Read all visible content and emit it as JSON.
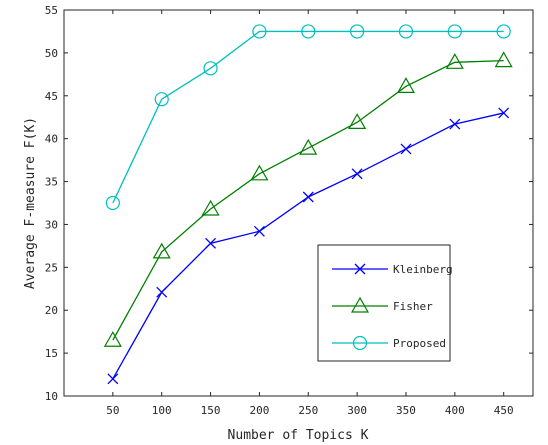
{
  "chart_data": {
    "type": "line",
    "title": "",
    "xlabel": "Number of Topics K",
    "ylabel": "Average F-measure F(K)",
    "x": [
      50,
      100,
      150,
      200,
      250,
      300,
      350,
      400,
      450
    ],
    "xlim": [
      0,
      480
    ],
    "ylim": [
      10,
      55
    ],
    "xticks": [
      50,
      100,
      150,
      200,
      250,
      300,
      350,
      400,
      450
    ],
    "yticks": [
      10,
      15,
      20,
      25,
      30,
      35,
      40,
      45,
      50,
      55
    ],
    "grid": false,
    "legend_position": "lower-right",
    "series": [
      {
        "name": "Kleinberg",
        "color": "#0000ff",
        "marker": "x",
        "values": [
          12.0,
          22.1,
          27.8,
          29.2,
          33.2,
          35.9,
          38.8,
          41.7,
          43.0
        ]
      },
      {
        "name": "Fisher",
        "color": "#008000",
        "marker": "triangle",
        "values": [
          16.5,
          26.8,
          31.8,
          35.9,
          38.9,
          41.9,
          46.1,
          48.9,
          49.1
        ]
      },
      {
        "name": "Proposed",
        "color": "#00bfbf",
        "marker": "circle",
        "values": [
          32.5,
          44.6,
          48.2,
          52.5,
          52.5,
          52.5,
          52.5,
          52.5,
          52.5
        ]
      }
    ]
  }
}
